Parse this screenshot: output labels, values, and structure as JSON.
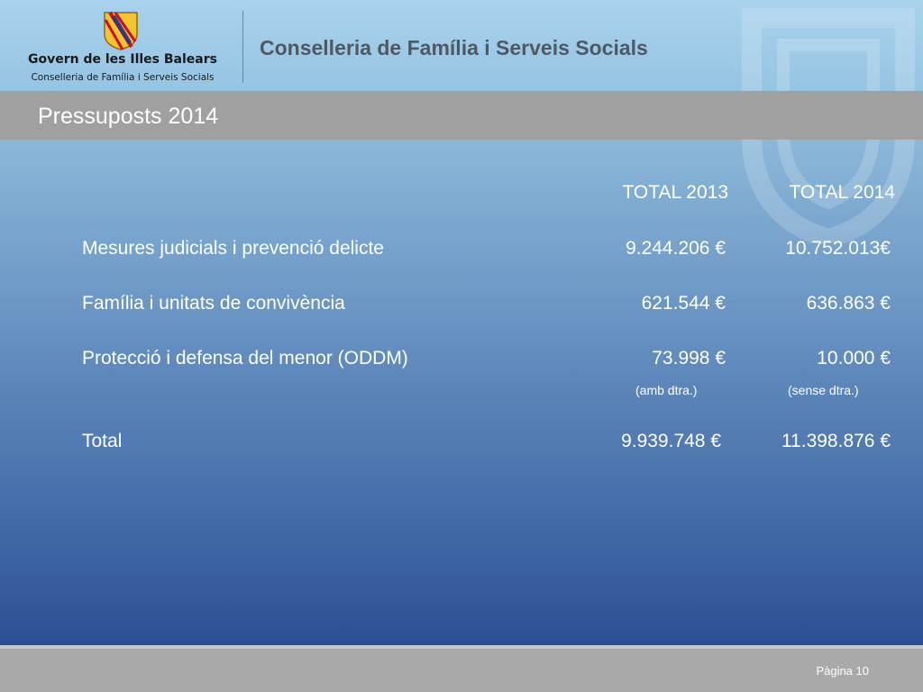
{
  "header": {
    "logo_title": "Govern de les Illes Balears",
    "logo_subtitle": "Conselleria de Família i Serveis Socials",
    "department": "Conselleria de Família i Serveis Socials"
  },
  "slide": {
    "title": "Pressuposts 2014"
  },
  "table": {
    "columns": [
      "TOTAL 2013",
      "TOTAL 2014"
    ],
    "rows": [
      {
        "label": "Mesures judicials i prevenció delicte",
        "v2013": "9.244.206 €",
        "v2014": "10.752.013€"
      },
      {
        "label": "Família i unitats de convivència",
        "v2013": "621.544 €",
        "v2014": "636.863 €"
      },
      {
        "label": "Protecció i defensa del menor (ODDM)",
        "v2013": "73.998 €",
        "v2014": "10.000 €",
        "note2013": "(amb dtra.)",
        "note2014": "(sense dtra.)"
      }
    ],
    "total": {
      "label": "Total",
      "v2013": "9.939.748 €",
      "v2014": "11.398.876 €"
    }
  },
  "footer": {
    "page": "Pàgina 10"
  },
  "colors": {
    "title_bar": "#a0a0a0",
    "footer": "#a9a9a9",
    "dept_text": "#4f5963"
  }
}
